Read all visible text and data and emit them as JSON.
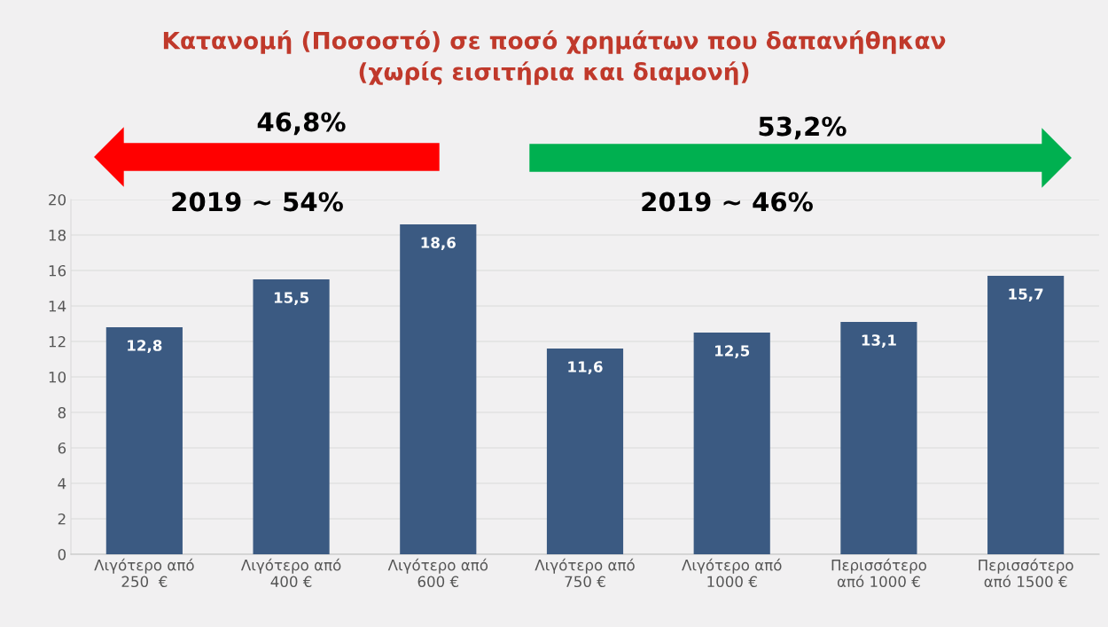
{
  "chart_data": {
    "type": "bar",
    "title": "Κατανομή (Ποσοστό) σε ποσό χρημάτων που δαπανήθηκαν\n(χωρίς εισιτήρια και διαμονή)",
    "categories": [
      "Λιγότερο από\n250  €",
      "Λιγότερο από\n400 €",
      "Λιγότερο από\n600 €",
      "Λιγότερο από\n750 €",
      "Λιγότερο από\n1000 €",
      "Περισσότερο\nαπό 1000 €",
      "Περισσότερο\nαπό 1500 €"
    ],
    "values": [
      12.8,
      15.5,
      18.6,
      11.6,
      12.5,
      13.1,
      15.7
    ],
    "value_labels": [
      "12,8",
      "15,5",
      "18,6",
      "11,6",
      "12,5",
      "13,1",
      "15,7"
    ],
    "color": "#3b5a82",
    "ylim": [
      0,
      20
    ],
    "yticks": [
      0,
      2,
      4,
      6,
      8,
      10,
      12,
      14,
      16,
      18,
      20
    ],
    "grid": "y",
    "annotations": [
      "46,8%",
      "2019 ~ 54%",
      "53,2%",
      "2019 ~ 46%"
    ]
  }
}
